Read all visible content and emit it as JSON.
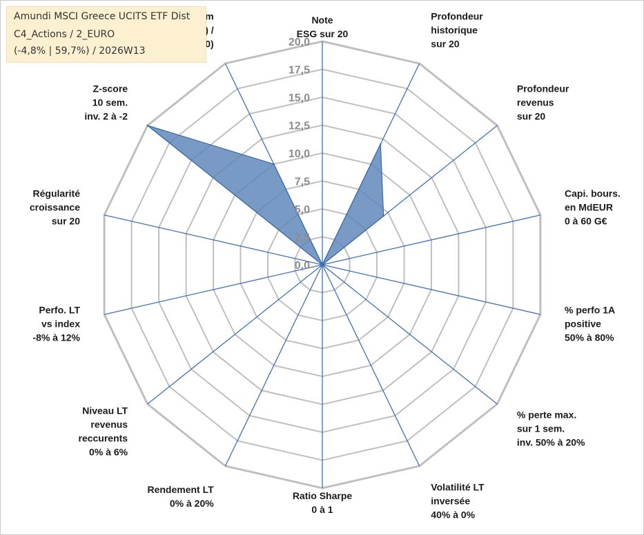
{
  "title_box": {
    "line1": "Amundi MSCI Greece UCITS ETF Dist",
    "line2": "C4_Actions / 2_EURO",
    "line3": "(-4,8% | 59,7%) / 2026W13"
  },
  "colors": {
    "fill": "#5b84b8",
    "stroke": "#3a6aa8",
    "spoke": "#3f6fb4",
    "grid": "#bfbfbf",
    "title_bg": "#fdf0d0"
  },
  "chart_data": {
    "type": "radar",
    "rlim": [
      0,
      20
    ],
    "tick_labels": [
      "0,0",
      "2,5",
      "5,0",
      "7,5",
      "10,0",
      "12,5",
      "15,0",
      "17,5",
      "20,0"
    ],
    "grid": true,
    "axes": [
      {
        "label": [
          "Note",
          "ESG sur 20"
        ]
      },
      {
        "label": [
          "Profondeur",
          "historique",
          "sur 20"
        ]
      },
      {
        "label": [
          "Profondeur",
          "revenus",
          "sur 20"
        ]
      },
      {
        "label": [
          "Capi. bours.",
          "en MdEUR",
          "0 à 60 G€"
        ]
      },
      {
        "label": [
          "% perfo 1A",
          "positive",
          "50% à 80%"
        ]
      },
      {
        "label": [
          "% perte max.",
          "sur 1 sem.",
          "inv. 50% à 20%"
        ]
      },
      {
        "label": [
          "Volatilité LT",
          "inversée",
          "40% à 0%"
        ]
      },
      {
        "label": [
          "Ratio Sharpe",
          "0 à 1"
        ]
      },
      {
        "label": [
          "Rendement LT",
          "0% à 20%"
        ]
      },
      {
        "label": [
          "Niveau LT",
          "revenus",
          "reccurents",
          "0% à 6%"
        ]
      },
      {
        "label": [
          "Perfo. LT",
          "vs index",
          "-8% à 12%"
        ]
      },
      {
        "label": [
          "Régularité",
          "croissance",
          "sur 20"
        ]
      },
      {
        "label": [
          "Z-score",
          "10 sem.",
          "inv. 2 à -2"
        ]
      },
      {
        "label": [
          "Momentum",
          "Achat (20) /",
          "Vente (0)"
        ]
      }
    ],
    "series": [
      {
        "values": [
          0,
          12,
          7,
          0,
          0,
          0,
          0,
          0,
          0,
          0,
          0,
          0,
          20,
          10
        ]
      }
    ]
  }
}
